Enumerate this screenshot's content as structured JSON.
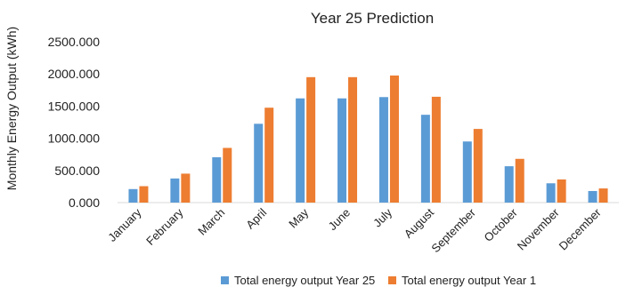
{
  "chart_data": {
    "type": "bar",
    "title": "Year 25 Prediction",
    "xlabel": "",
    "ylabel": "Monthly Energy Output (kWh)",
    "ylim": [
      0,
      2500
    ],
    "yticks": [
      "0.000",
      "500.000",
      "1000.000",
      "1500.000",
      "2000.000",
      "2500.000"
    ],
    "grid": false,
    "legend_position": "bottom",
    "categories": [
      "January",
      "February",
      "March",
      "April",
      "May",
      "June",
      "July",
      "August",
      "September",
      "October",
      "November",
      "December"
    ],
    "series": [
      {
        "name": "Total energy output Year 25",
        "color": "#5B9BD5",
        "values": [
          210,
          375,
          705,
          1225,
          1620,
          1620,
          1640,
          1365,
          950,
          565,
          300,
          180
        ]
      },
      {
        "name": "Total energy output Year 1",
        "color": "#ED7D31",
        "values": [
          255,
          450,
          850,
          1475,
          1950,
          1950,
          1975,
          1645,
          1145,
          680,
          360,
          220
        ]
      }
    ]
  }
}
